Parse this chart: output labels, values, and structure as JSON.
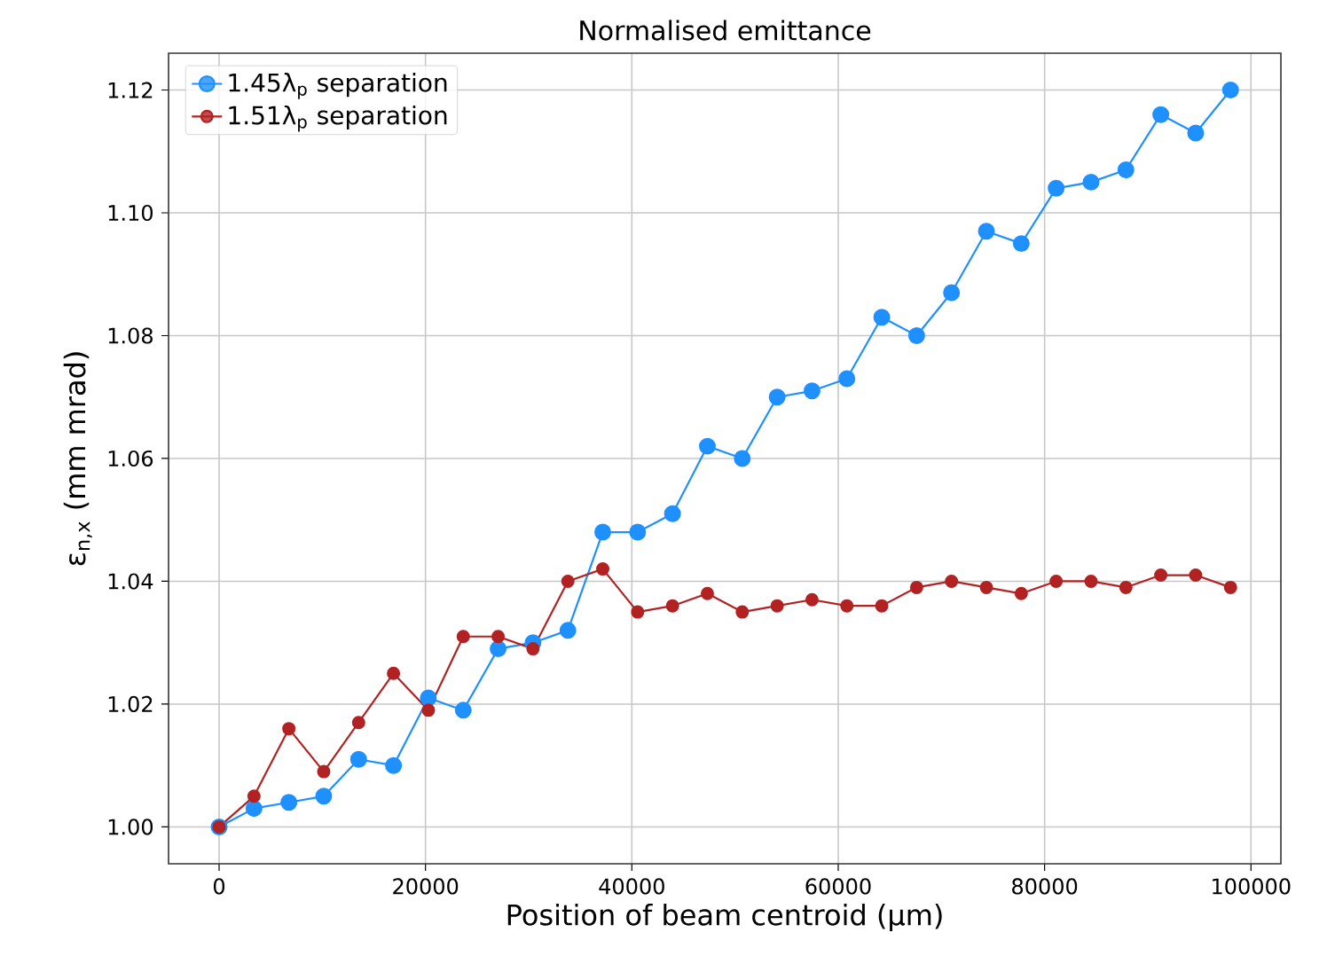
{
  "chart_data": {
    "type": "line",
    "title": "Normalised emittance",
    "xlabel": "Position of beam centroid (μm)",
    "ylabel": "ε$_{n,x}$ (mm mrad)",
    "x": [
      0,
      3380,
      6760,
      10140,
      13520,
      16900,
      20280,
      23660,
      27040,
      30420,
      33800,
      37180,
      40560,
      43940,
      47320,
      50700,
      54080,
      57460,
      60840,
      64220,
      67600,
      70980,
      74360,
      77740,
      81120,
      84500,
      87880,
      91260,
      94640,
      98020
    ],
    "series": [
      {
        "name": "1.45λ$_{p}$ separation",
        "color": "#1e90ff",
        "values": [
          1.0,
          1.003,
          1.004,
          1.005,
          1.011,
          1.01,
          1.021,
          1.019,
          1.029,
          1.03,
          1.032,
          1.048,
          1.048,
          1.051,
          1.062,
          1.06,
          1.07,
          1.071,
          1.073,
          1.083,
          1.08,
          1.087,
          1.097,
          1.095,
          1.104,
          1.105,
          1.107,
          1.116,
          1.113,
          1.12
        ]
      },
      {
        "name": "1.51λ$_{p}$ separation",
        "color": "#b22222",
        "values": [
          1.0,
          1.005,
          1.016,
          1.009,
          1.017,
          1.025,
          1.019,
          1.031,
          1.031,
          1.029,
          1.04,
          1.042,
          1.035,
          1.036,
          1.038,
          1.035,
          1.036,
          1.037,
          1.036,
          1.036,
          1.039,
          1.04,
          1.039,
          1.038,
          1.04,
          1.04,
          1.039,
          1.041,
          1.041,
          1.039
        ]
      }
    ],
    "xlim": [
      -4900,
      102900
    ],
    "ylim": [
      0.994,
      1.126
    ],
    "xticks": [
      0,
      20000,
      40000,
      60000,
      80000,
      100000
    ],
    "yticks": [
      {
        "value": 1.0,
        "label": "1.00"
      },
      {
        "value": 1.02,
        "label": "1.02"
      },
      {
        "value": 1.04,
        "label": "1.04"
      },
      {
        "value": 1.06,
        "label": "1.06"
      },
      {
        "value": 1.08,
        "label": "1.08"
      },
      {
        "value": 1.1,
        "label": "1.10"
      },
      {
        "value": 1.12,
        "label": "1.12"
      }
    ],
    "grid": true,
    "legend": "top left",
    "marker": "circle",
    "line_style": "solid"
  }
}
